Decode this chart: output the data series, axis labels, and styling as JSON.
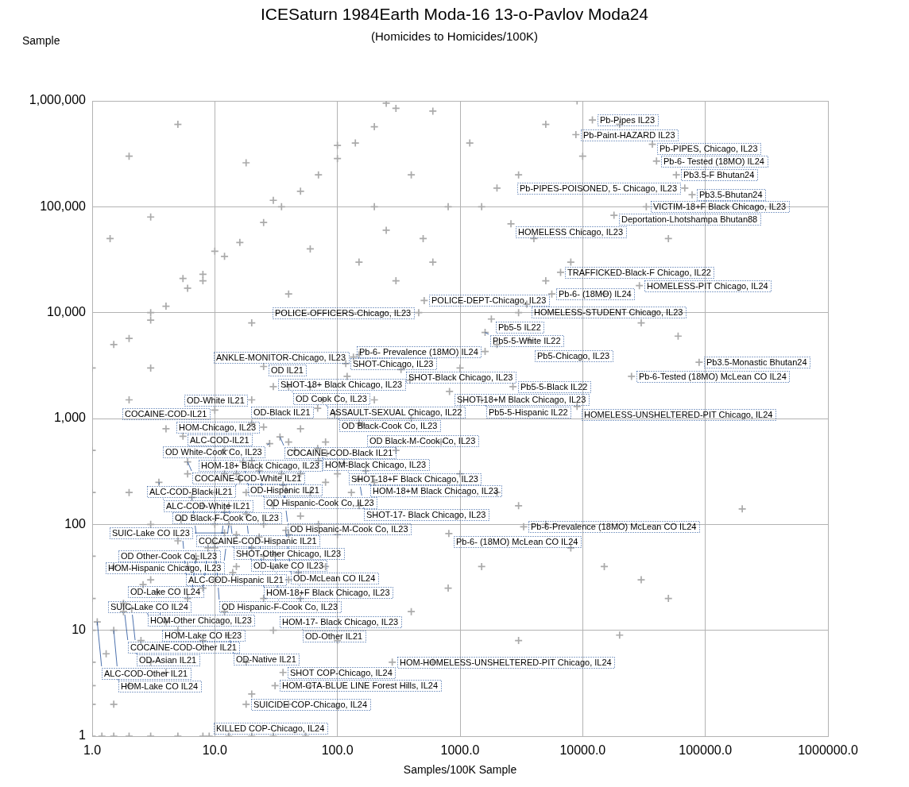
{
  "chart_data": {
    "type": "scatter",
    "title": "ICESaturn 1984Earth Moda-16 13-o-Pavlov Moda24",
    "subtitle": "(Homicides to Homicides/100K)",
    "xlabel": "Samples/100K Sample",
    "ylabel": "Sample",
    "log": "xy",
    "grid": true,
    "marker": "cross",
    "xlim": [
      1,
      1000000
    ],
    "ylim": [
      1,
      1000000
    ],
    "xticks": [
      {
        "value": 1,
        "label": "1.0"
      },
      {
        "value": 10,
        "label": "10.0"
      },
      {
        "value": 100,
        "label": "100.0"
      },
      {
        "value": 1000,
        "label": "1000.0"
      },
      {
        "value": 10000,
        "label": "10000.0"
      },
      {
        "value": 100000,
        "label": "100000.0"
      },
      {
        "value": 1000000,
        "label": "1000000.0"
      }
    ],
    "yticks": [
      1,
      10,
      100,
      {
        "value": 1000,
        "label": "1,000"
      },
      {
        "value": 10000,
        "label": "10,000"
      },
      {
        "value": 100000,
        "label": "100,000"
      },
      {
        "value": 1000000,
        "label": "1,000,000"
      }
    ],
    "series": [
      {
        "color": "#aaaaaa",
        "x": [
          12000,
          8800,
          37000,
          40000,
          58000,
          68000,
          78000,
          33000,
          18000,
          2600,
          6600,
          29000,
          5600,
          510,
          3500,
          460,
          1800,
          1600,
          3700,
          1600,
          135,
          117,
          89000,
          330,
          25,
          25000,
          390,
          2700,
          40,
          820,
          76,
          1500,
          20,
          9000,
          69,
          10,
          95,
          160,
          25,
          5.5,
          34,
          28,
          69,
          82,
          6,
          17,
          113,
          23,
          170,
          150,
          16,
          3.5,
          36,
          38,
          6.5,
          13,
          12,
          18,
          5.3,
          13,
          3300,
          38,
          12,
          810,
          23,
          10,
          8.8,
          31,
          7,
          48,
          2.6,
          3.4,
          1.8,
          2.1,
          1.1,
          1.5,
          13,
          280,
          36,
          31,
          18,
          9,
          1,
          1.2,
          1.5,
          2,
          3,
          5,
          8,
          13,
          20,
          30,
          55,
          1,
          1,
          1,
          1,
          1,
          1,
          1,
          1,
          1,
          1.5,
          2,
          3,
          2.5,
          4,
          5,
          1.3,
          1.8,
          3,
          4,
          6,
          8,
          10,
          7,
          5,
          3,
          2,
          1.5,
          12,
          15,
          20,
          25,
          10,
          15,
          6,
          4,
          2,
          1.5,
          3,
          18,
          30,
          50,
          80,
          100,
          150,
          200,
          300,
          60,
          100,
          40,
          20,
          50,
          80,
          150,
          40,
          30,
          60,
          120,
          200,
          400,
          700,
          1000,
          2000,
          3000,
          5000,
          8000,
          15000,
          30000,
          20000,
          50000,
          200000,
          1500,
          800,
          400,
          3000,
          600,
          1000,
          2000,
          3000,
          5000,
          8000,
          15000,
          30000,
          60000,
          50000,
          10000,
          20000,
          9000,
          5000,
          3000,
          1500,
          500,
          300,
          200,
          100,
          30,
          10,
          5.5,
          250,
          600,
          5,
          18,
          1.4,
          3,
          8,
          3,
          20,
          40,
          2,
          60,
          150,
          2,
          3,
          4,
          6,
          8,
          12,
          16,
          25,
          35,
          50,
          70,
          100,
          140,
          200,
          300,
          8,
          10,
          12,
          15,
          18,
          20,
          25,
          30,
          35,
          40,
          45,
          50,
          60,
          70,
          80,
          10,
          14,
          6,
          8,
          25,
          30,
          40,
          12,
          20,
          50,
          70,
          100,
          130,
          400,
          800,
          600,
          1200,
          2000,
          4000,
          250,
          150
        ],
        "values": [
          660000,
          480000,
          390000,
          270000,
          200000,
          150000,
          130000,
          100000,
          83000,
          69000,
          24000,
          18000,
          15000,
          13000,
          12000,
          10000,
          8700,
          6500,
          5500,
          4300,
          3800,
          3300,
          3400,
          2900,
          3100,
          2500,
          2300,
          2000,
          2000,
          1800,
          1500,
          1500,
          1500,
          1300,
          1250,
          1200,
          1100,
          870,
          830,
          680,
          670,
          580,
          520,
          470,
          390,
          390,
          380,
          320,
          320,
          270,
          265,
          250,
          235,
          210,
          180,
          150,
          130,
          125,
          110,
          100,
          95,
          88,
          83,
          82,
          76,
          66,
          60,
          52,
          47,
          35,
          27,
          23,
          18,
          16,
          12,
          10,
          9,
          5,
          4,
          3,
          2,
          1,
          1,
          1,
          1,
          1,
          1,
          1,
          1,
          1,
          1,
          1,
          1,
          2,
          3,
          5,
          10,
          20,
          50,
          200,
          500,
          3000,
          2,
          3,
          5,
          8,
          4,
          10,
          6,
          15,
          30,
          12,
          20,
          8,
          30,
          50,
          70,
          100,
          200,
          40,
          15,
          40,
          60,
          100,
          200,
          300,
          300,
          800,
          1500,
          5000,
          3000,
          5,
          10,
          20,
          40,
          80,
          150,
          250,
          500,
          3,
          8,
          2,
          2.5,
          300,
          600,
          900,
          600,
          2000,
          2000,
          2500,
          1500,
          1000,
          600,
          300,
          200,
          150,
          100,
          60,
          40,
          30,
          9,
          20,
          140,
          40,
          25,
          15,
          8,
          5,
          3000,
          5000,
          10000,
          20000,
          30000,
          15000,
          8000,
          6000,
          50000,
          300000,
          600000,
          1000000,
          600000,
          200000,
          100000,
          50000,
          20000,
          100000,
          380000,
          115000,
          38000,
          21000,
          950000,
          800000,
          600000,
          260000,
          50000,
          80000,
          20000,
          10000,
          8000,
          15000,
          300000,
          40000,
          4000,
          5700,
          8500,
          11500,
          17000,
          23000,
          34000,
          46000,
          71000,
          100000,
          140000,
          200000,
          285000,
          400000,
          570000,
          850000,
          150,
          100,
          300,
          80,
          200,
          400,
          50,
          150,
          300,
          80,
          500,
          120,
          200,
          100,
          250,
          60,
          35,
          40,
          25,
          20,
          40,
          30,
          500,
          900,
          800,
          400,
          300,
          200,
          200000,
          100000,
          30000,
          400000,
          150000,
          50000,
          60000,
          30000
        ]
      }
    ],
    "annotations": [
      {
        "text": "Pb-Pipes IL23",
        "x": 12000,
        "y": 660000
      },
      {
        "text": "Pb-Paint-HAZARD IL23",
        "x": 8800,
        "y": 480000
      },
      {
        "text": "Pb-PIPES, Chicago, IL23",
        "x": 37000,
        "y": 390000
      },
      {
        "text": "Pb-6- Tested (18MO) IL24",
        "x": 40000,
        "y": 270000
      },
      {
        "text": "Pb3.5-F Bhutan24",
        "x": 58000,
        "y": 200000
      },
      {
        "text": "Pb-PIPES-POISONED, 5- Chicago, IL23",
        "x": 68000,
        "y": 150000
      },
      {
        "text": "Pb3.5-Bhutan24",
        "x": 78000,
        "y": 130000
      },
      {
        "text": "VICTIM-18+F Black Chicago, IL23",
        "x": 33000,
        "y": 100000
      },
      {
        "text": "Deportation-Lhotshampa Bhutan88",
        "x": 18000,
        "y": 83000
      },
      {
        "text": "HOMELESS Chicago, IL23",
        "x": 2600,
        "y": 69000
      },
      {
        "text": "TRAFFICKED-Black-F Chicago, IL22",
        "x": 6600,
        "y": 24000
      },
      {
        "text": "HOMELESS-PIT Chicago, IL24",
        "x": 29000,
        "y": 18000
      },
      {
        "text": "Pb-6- (18MO) IL24",
        "x": 5600,
        "y": 15000
      },
      {
        "text": "POLICE-DEPT-Chicago, IL23",
        "x": 510,
        "y": 13000
      },
      {
        "text": "HOMELESS-STUDENT Chicago, IL23",
        "x": 3500,
        "y": 12000
      },
      {
        "text": "POLICE-OFFICERS-Chicago, IL23",
        "x": 460,
        "y": 10000
      },
      {
        "text": "Pb5-5 IL22",
        "x": 1800,
        "y": 8700
      },
      {
        "text": "Pb5-5-White IL22",
        "x": 1600,
        "y": 6500
      },
      {
        "text": "Pb5-Chicago, IL23",
        "x": 3700,
        "y": 5500
      },
      {
        "text": "Pb-6- Prevalence (18MO) IL24",
        "x": 1600,
        "y": 4300
      },
      {
        "text": "ANKLE-MONITOR-Chicago, IL23",
        "x": 135,
        "y": 3800
      },
      {
        "text": "SHOT-Chicago, IL23",
        "x": 117,
        "y": 3300
      },
      {
        "text": "Pb3.5-Monastic Bhutan24",
        "x": 89000,
        "y": 3400
      },
      {
        "text": "SHOT-Black Chicago, IL23",
        "x": 330,
        "y": 2900
      },
      {
        "text": "OD IL21",
        "x": 25,
        "y": 3100
      },
      {
        "text": "Pb-6-Tested (18MO) McLean CO IL24",
        "x": 25000,
        "y": 2500
      },
      {
        "text": "SHOT-18+ Black Chicago, IL23",
        "x": 390,
        "y": 2300
      },
      {
        "text": "Pb5-5-Black IL22",
        "x": 2700,
        "y": 2000
      },
      {
        "text": "OD Cook Co, IL23",
        "x": 40,
        "y": 2000
      },
      {
        "text": "SHOT-18+M Black Chicago, IL23",
        "x": 820,
        "y": 1800
      },
      {
        "text": "ASSAULT-SEXUAL Chicago, IL22",
        "x": 76,
        "y": 1500
      },
      {
        "text": "Pb5-5-Hispanic IL22",
        "x": 1500,
        "y": 1500
      },
      {
        "text": "OD-White IL21",
        "x": 20,
        "y": 1500
      },
      {
        "text": "HOMELESS-UNSHELTERED-PIT Chicago, IL24",
        "x": 9000,
        "y": 1300
      },
      {
        "text": "OD-Black IL21",
        "x": 69,
        "y": 1250
      },
      {
        "text": "COCAINE-COD-IL21",
        "x": 10,
        "y": 1200
      },
      {
        "text": "OD Black-Cook Co, IL23",
        "x": 95,
        "y": 1100
      },
      {
        "text": "OD Black-M-Cook Co, IL23",
        "x": 160,
        "y": 870
      },
      {
        "text": "HOM-Chicago, IL23",
        "x": 25,
        "y": 830
      },
      {
        "text": "ALC-COD-IL21",
        "x": 5.5,
        "y": 680
      },
      {
        "text": "COCAINE-COD-Black IL21",
        "x": 34,
        "y": 670
      },
      {
        "text": "OD White-Cook Co, IL23",
        "x": 28,
        "y": 580
      },
      {
        "text": "HOM-Black Chicago, IL23",
        "x": 69,
        "y": 520
      },
      {
        "text": "HOM-18+ Black Chicago, IL23",
        "x": 82,
        "y": 470
      },
      {
        "text": "COCAINE-COD-White IL21",
        "x": 6,
        "y": 390
      },
      {
        "text": "OD-Hispanic IL21",
        "x": 17,
        "y": 390
      },
      {
        "text": "SHOT-18+F Black Chicago, IL23",
        "x": 113,
        "y": 380
      },
      {
        "text": "OD Hispanic-Cook Co, IL23",
        "x": 23,
        "y": 320
      },
      {
        "text": "HOM-18+M Black Chicago, IL23",
        "x": 170,
        "y": 320
      },
      {
        "text": "SHOT-17- Black Chicago, IL23",
        "x": 150,
        "y": 270
      },
      {
        "text": "ALC-COD-Black IL21",
        "x": 16,
        "y": 265
      },
      {
        "text": "ALC-COD-White IL21",
        "x": 3.5,
        "y": 250
      },
      {
        "text": "OD Hispanic-M-Cook Co, IL23",
        "x": 36,
        "y": 235
      },
      {
        "text": "OD Black-F-Cook Co, IL23",
        "x": 38,
        "y": 210
      },
      {
        "text": "COCAINE-COD-Hispanic IL21",
        "x": 6.5,
        "y": 180
      },
      {
        "text": "SHOT-Other Chicago, IL23",
        "x": 13,
        "y": 150
      },
      {
        "text": "OD Other-Cook Co, IL23",
        "x": 12,
        "y": 130
      },
      {
        "text": "OD-Lake CO IL23",
        "x": 18,
        "y": 125
      },
      {
        "text": "ALC-COD-Hispanic IL21",
        "x": 5.3,
        "y": 110
      },
      {
        "text": "HOM-Hispanic Chicago, IL23",
        "x": 13,
        "y": 100
      },
      {
        "text": "Pb-6-Prevalence (18MO) McLean CO IL24",
        "x": 3300,
        "y": 95
      },
      {
        "text": "OD-McLean CO IL24",
        "x": 38,
        "y": 88
      },
      {
        "text": "SUIC-Lake CO IL23",
        "x": 12,
        "y": 83
      },
      {
        "text": "Pb-6- (18MO) McLean CO IL24",
        "x": 810,
        "y": 82
      },
      {
        "text": "HOM-18+F Black Chicago, IL23",
        "x": 23,
        "y": 76
      },
      {
        "text": "OD Hispanic-F-Cook Co, IL23",
        "x": 10,
        "y": 66
      },
      {
        "text": "OD-Lake CO IL24",
        "x": 8.8,
        "y": 60
      },
      {
        "text": "HOM-17- Black Chicago, IL23",
        "x": 31,
        "y": 52
      },
      {
        "text": "SUIC-Lake CO IL24",
        "x": 7,
        "y": 47
      },
      {
        "text": "OD-Other IL21",
        "x": 48,
        "y": 35
      },
      {
        "text": "HOM-Other Chicago, IL23",
        "x": 2.6,
        "y": 27
      },
      {
        "text": "HOM-Lake CO IL23",
        "x": 3.4,
        "y": 23
      },
      {
        "text": "COCAINE-COD-Other IL21",
        "x": 1.8,
        "y": 18
      },
      {
        "text": "OD-Asian IL21",
        "x": 2.1,
        "y": 16
      },
      {
        "text": "ALC-COD-Other IL21",
        "x": 1.1,
        "y": 12
      },
      {
        "text": "HOM-Lake CO IL24",
        "x": 1.5,
        "y": 10
      },
      {
        "text": "OD-Native IL21",
        "x": 13,
        "y": 9
      },
      {
        "text": "HOM-HOMELESS-UNSHELTERED-PIT Chicago, IL24",
        "x": 280,
        "y": 5
      },
      {
        "text": "SHOT COP-Chicago, IL24",
        "x": 36,
        "y": 4
      },
      {
        "text": "HOM-CTA-BLUE LINE Forest Hills, IL24",
        "x": 31,
        "y": 3
      },
      {
        "text": "SUICIDE COP-Chicago, IL24",
        "x": 18,
        "y": 2
      },
      {
        "text": "KILLED COP-Chicago, IL24",
        "x": 9,
        "y": 1
      }
    ]
  }
}
